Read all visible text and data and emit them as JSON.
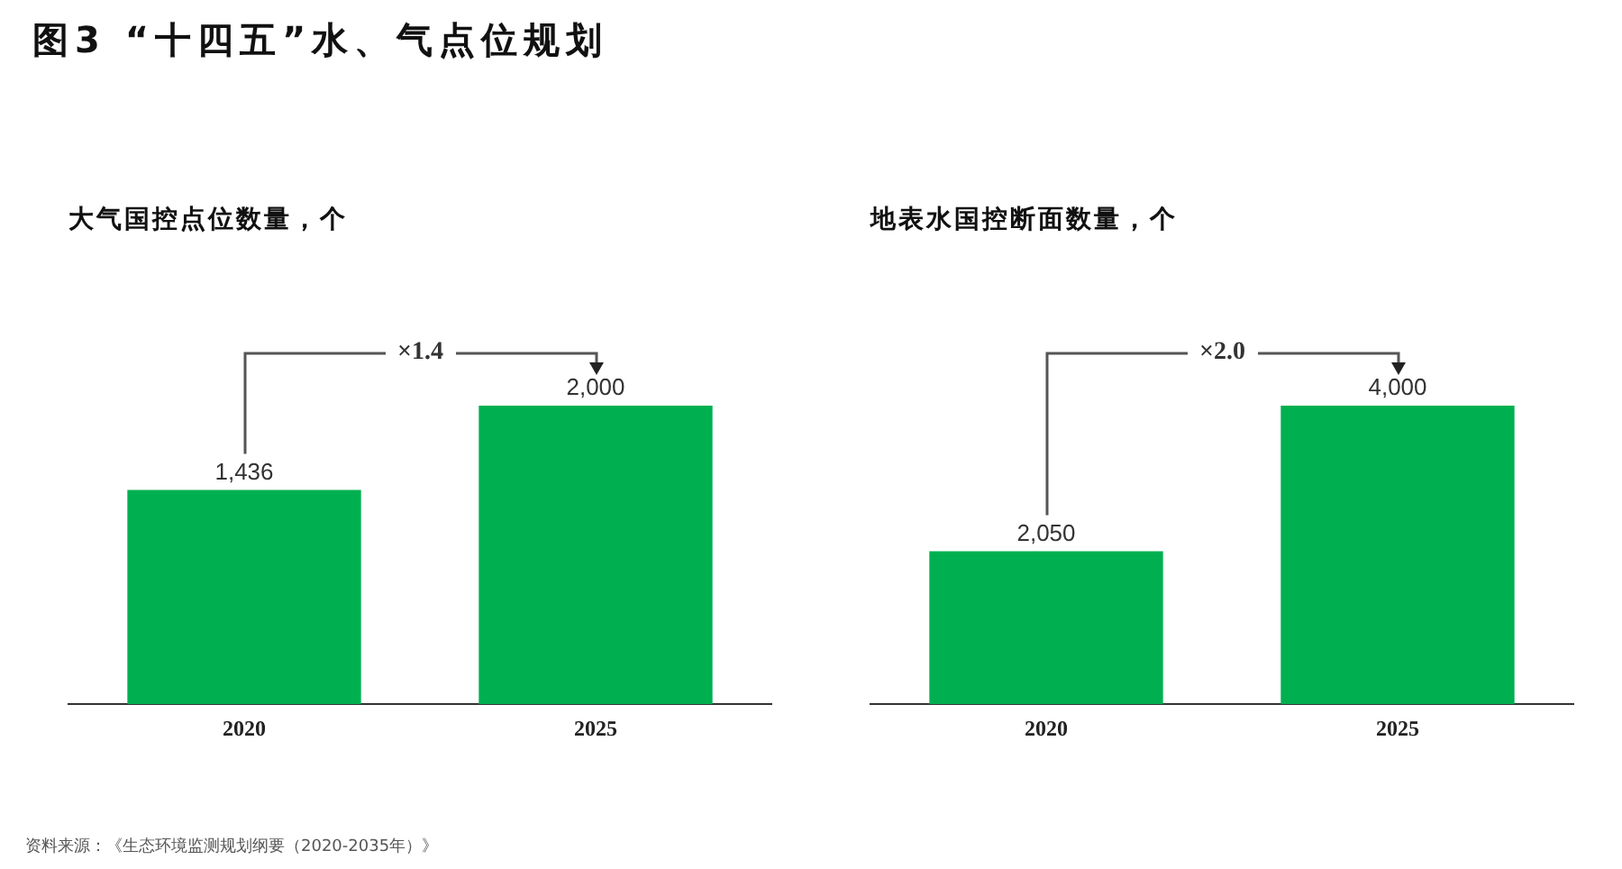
{
  "chart_data": [
    {
      "type": "bar",
      "title": "图3 “十四五”水、气点位规划",
      "subtitle": "大气国控点位数量，个",
      "categories": [
        "2020",
        "2025"
      ],
      "values": [
        1436,
        2000
      ],
      "color": "#00b050",
      "value_labels": [
        "1,436",
        "2,000"
      ],
      "annotations": [
        "×1.4",
        "资料来源：《生态环境监测规划纲要（2020-2035年）》"
      ]
    },
    {
      "type": "bar",
      "subtitle": "地表水国控断面数量，个",
      "categories": [
        "2020",
        "2025"
      ],
      "values": [
        2050,
        4000
      ],
      "color": "#00b050",
      "value_labels": [
        "2,050",
        "4,000"
      ],
      "annotations": [
        "×2.0"
      ]
    }
  ]
}
